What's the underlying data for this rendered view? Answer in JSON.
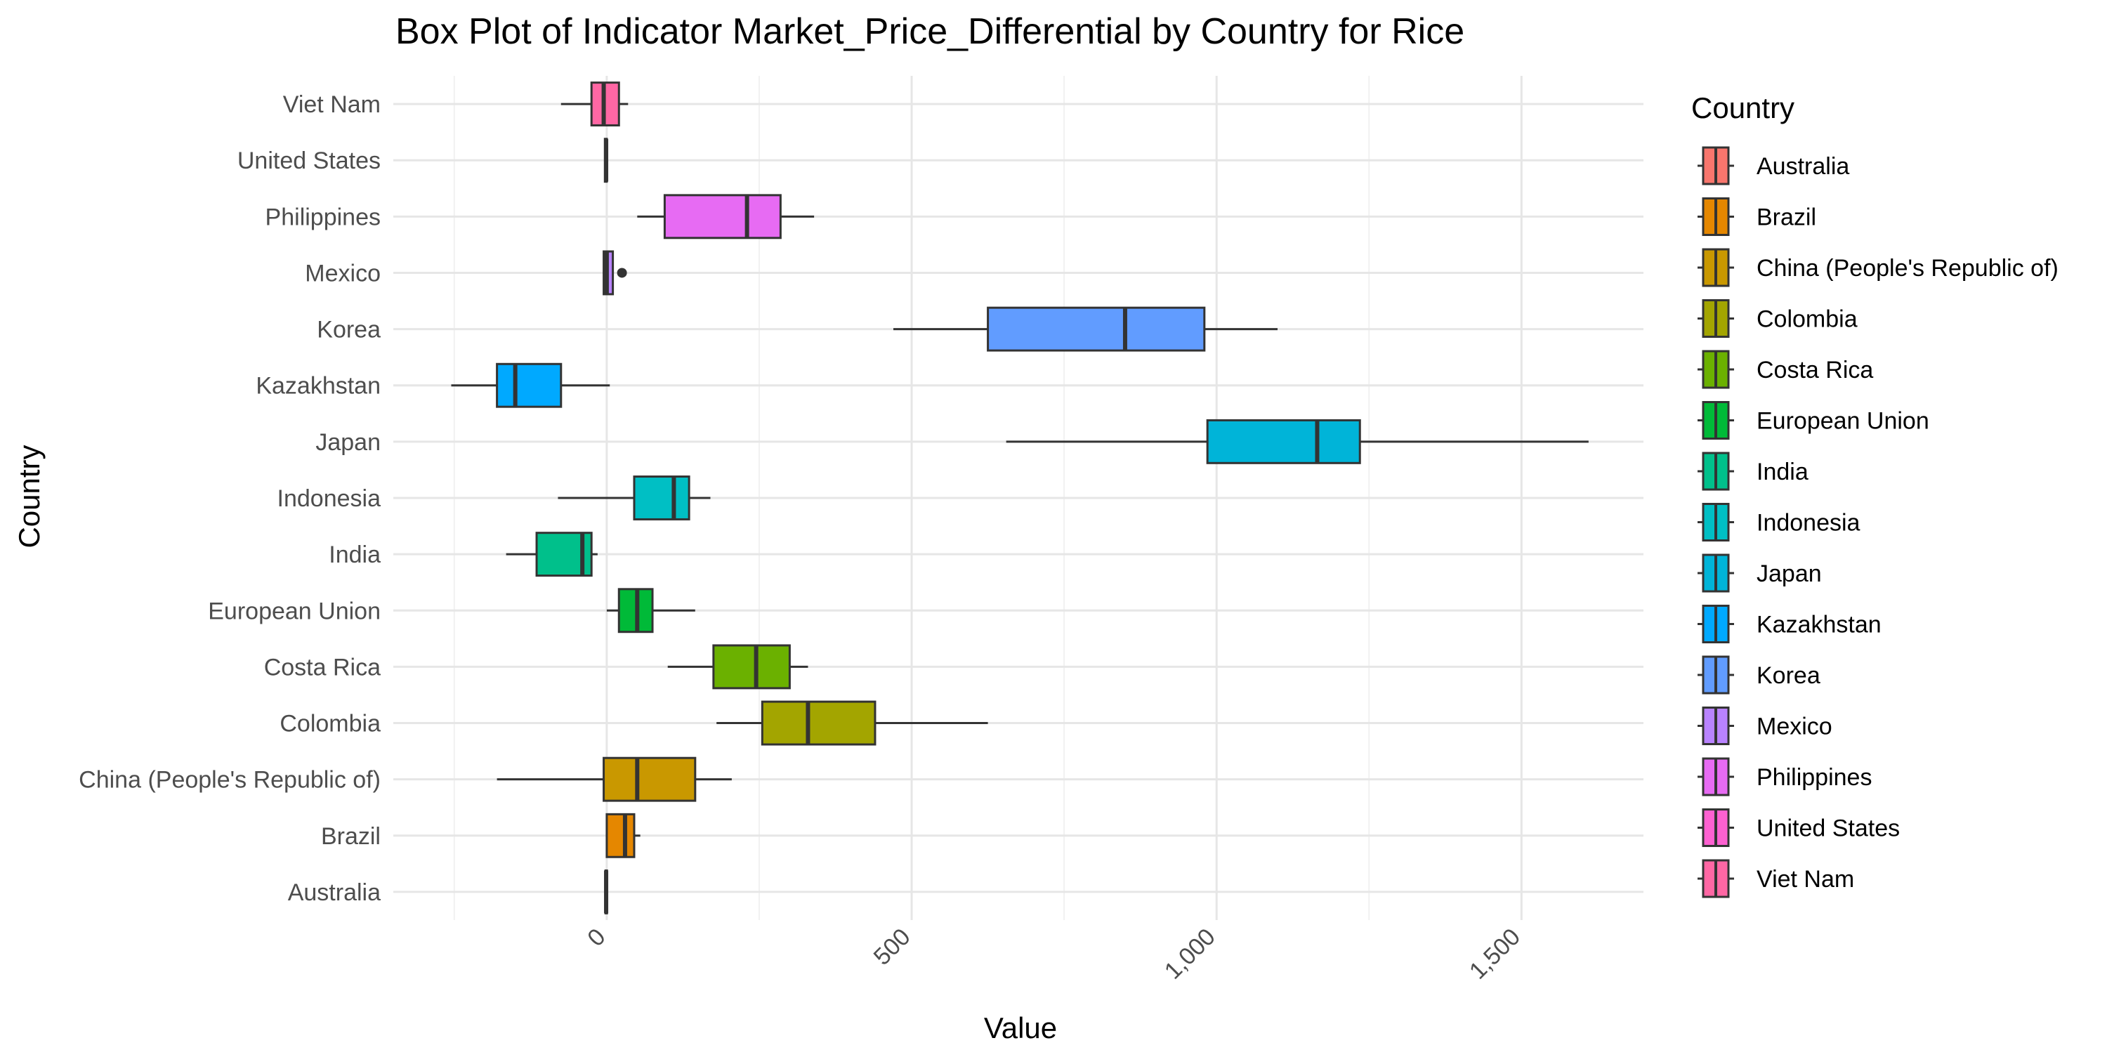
{
  "chart_data": {
    "type": "boxplot",
    "title": "Box Plot of Indicator Market_Price_Differential by Country for Rice",
    "xlabel": "Value",
    "ylabel": "Country",
    "xlim": [
      -350,
      1700
    ],
    "x_ticks": [
      {
        "value": 0,
        "label": "0"
      },
      {
        "value": 500,
        "label": "500"
      },
      {
        "value": 1000,
        "label": "1,000"
      },
      {
        "value": 1500,
        "label": "1,500"
      }
    ],
    "grid": true,
    "legend": {
      "title": "Country",
      "position": "right",
      "entries": [
        {
          "name": "Australia",
          "color": "#F8766D"
        },
        {
          "name": "Brazil",
          "color": "#E58700"
        },
        {
          "name": "China (People's Republic of)",
          "color": "#C99800"
        },
        {
          "name": "Colombia",
          "color": "#A3A500"
        },
        {
          "name": "Costa Rica",
          "color": "#6BB100"
        },
        {
          "name": "European Union",
          "color": "#00BA38"
        },
        {
          "name": "India",
          "color": "#00C08B"
        },
        {
          "name": "Indonesia",
          "color": "#00BFC4"
        },
        {
          "name": "Japan",
          "color": "#00B4D8"
        },
        {
          "name": "Kazakhstan",
          "color": "#00A9FF"
        },
        {
          "name": "Korea",
          "color": "#619CFF"
        },
        {
          "name": "Mexico",
          "color": "#B983FF"
        },
        {
          "name": "Philippines",
          "color": "#E76BF3"
        },
        {
          "name": "United States",
          "color": "#FD61D1"
        },
        {
          "name": "Viet Nam",
          "color": "#FF67A4"
        }
      ]
    },
    "boxes": [
      {
        "category": "Australia",
        "color": "#F8766D",
        "whisker_low": -2,
        "q1": -2,
        "median": -1,
        "q3": 0,
        "whisker_high": 0,
        "outliers": []
      },
      {
        "category": "Brazil",
        "color": "#E58700",
        "whisker_low": 0,
        "q1": 0,
        "median": 30,
        "q3": 45,
        "whisker_high": 55,
        "outliers": []
      },
      {
        "category": "China (People's Republic of)",
        "color": "#C99800",
        "whisker_low": -180,
        "q1": -5,
        "median": 50,
        "q3": 145,
        "whisker_high": 205,
        "outliers": []
      },
      {
        "category": "Colombia",
        "color": "#A3A500",
        "whisker_low": 180,
        "q1": 255,
        "median": 330,
        "q3": 440,
        "whisker_high": 625,
        "outliers": []
      },
      {
        "category": "Costa Rica",
        "color": "#6BB100",
        "whisker_low": 100,
        "q1": 175,
        "median": 245,
        "q3": 300,
        "whisker_high": 330,
        "outliers": []
      },
      {
        "category": "European Union",
        "color": "#00BA38",
        "whisker_low": 0,
        "q1": 20,
        "median": 50,
        "q3": 75,
        "whisker_high": 145,
        "outliers": []
      },
      {
        "category": "India",
        "color": "#00C08B",
        "whisker_low": -165,
        "q1": -115,
        "median": -40,
        "q3": -25,
        "whisker_high": -15,
        "outliers": []
      },
      {
        "category": "Indonesia",
        "color": "#00BFC4",
        "whisker_low": -80,
        "q1": 45,
        "median": 110,
        "q3": 135,
        "whisker_high": 170,
        "outliers": []
      },
      {
        "category": "Japan",
        "color": "#00B4D8",
        "whisker_low": 655,
        "q1": 985,
        "median": 1165,
        "q3": 1235,
        "whisker_high": 1610,
        "outliers": []
      },
      {
        "category": "Kazakhstan",
        "color": "#00A9FF",
        "whisker_low": -255,
        "q1": -180,
        "median": -150,
        "q3": -75,
        "whisker_high": 5,
        "outliers": []
      },
      {
        "category": "Korea",
        "color": "#619CFF",
        "whisker_low": 470,
        "q1": 625,
        "median": 850,
        "q3": 980,
        "whisker_high": 1100,
        "outliers": []
      },
      {
        "category": "Mexico",
        "color": "#B983FF",
        "whisker_low": -5,
        "q1": -5,
        "median": 0,
        "q3": 10,
        "whisker_high": 10,
        "outliers": [
          25
        ]
      },
      {
        "category": "Philippines",
        "color": "#E76BF3",
        "whisker_low": 50,
        "q1": 95,
        "median": 230,
        "q3": 285,
        "whisker_high": 340,
        "outliers": []
      },
      {
        "category": "United States",
        "color": "#FD61D1",
        "whisker_low": -3,
        "q1": -3,
        "median": -1,
        "q3": 0,
        "whisker_high": 0,
        "outliers": []
      },
      {
        "category": "Viet Nam",
        "color": "#FF67A4",
        "whisker_low": -75,
        "q1": -25,
        "median": -5,
        "q3": 20,
        "whisker_high": 35,
        "outliers": []
      }
    ]
  }
}
